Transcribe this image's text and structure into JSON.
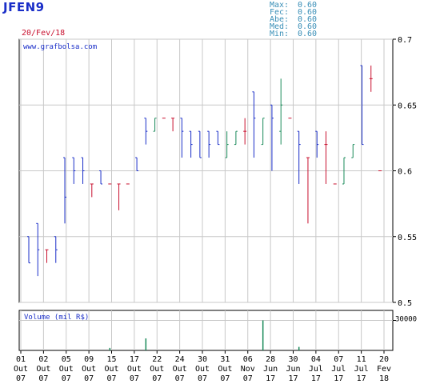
{
  "header": {
    "ticker": "JFEN9",
    "date": "20/Fev/18",
    "stats": [
      {
        "label": "Max:",
        "value": "0.60"
      },
      {
        "label": "Fec:",
        "value": "0.60"
      },
      {
        "label": "Abe:",
        "value": "0.60"
      },
      {
        "label": "Med:",
        "value": "0.60"
      },
      {
        "label": "Min:",
        "value": "0.60"
      }
    ]
  },
  "colors": {
    "up": "#1a8a5a",
    "down": "#1a2ec8",
    "flat": "#c8102e",
    "grid": "#c8c8c8",
    "volume": "#1a8a5a"
  },
  "chart_data": [
    {
      "type": "bar",
      "subtype": "ohlc",
      "watermark": "www.grafbolsa.com",
      "ylim": [
        0.5,
        0.7
      ],
      "yticks": [
        "0.7",
        "0.65",
        "0.6",
        "0.55",
        "0.5"
      ],
      "ytick_values": [
        0.7,
        0.65,
        0.6,
        0.55,
        0.5
      ],
      "grid": true,
      "xticks": [
        {
          "day": "01",
          "period": "Out",
          "year": "07"
        },
        {
          "day": "02",
          "period": "Out",
          "year": "07"
        },
        {
          "day": "05",
          "period": "Out",
          "year": "07"
        },
        {
          "day": "09",
          "period": "Out",
          "year": "07"
        },
        {
          "day": "15",
          "period": "Out",
          "year": "07"
        },
        {
          "day": "17",
          "period": "Out",
          "year": "07"
        },
        {
          "day": "22",
          "period": "Out",
          "year": "07"
        },
        {
          "day": "24",
          "period": "Out",
          "year": "07"
        },
        {
          "day": "30",
          "period": "Out",
          "year": "07"
        },
        {
          "day": "31",
          "period": "Out",
          "year": "07"
        },
        {
          "day": "06",
          "period": "Nov",
          "year": "07"
        },
        {
          "day": "28",
          "period": "Jun",
          "year": "17"
        },
        {
          "day": "30",
          "period": "Jun",
          "year": "17"
        },
        {
          "day": "04",
          "period": "Jul",
          "year": "17"
        },
        {
          "day": "07",
          "period": "Jul",
          "year": "17"
        },
        {
          "day": "11",
          "period": "Jul",
          "year": "17"
        },
        {
          "day": "20",
          "period": "Fev",
          "year": "18"
        }
      ],
      "bars": [
        {
          "i": 0,
          "open": 0.55,
          "high": 0.55,
          "low": 0.53,
          "close": 0.53
        },
        {
          "i": 1,
          "open": 0.56,
          "high": 0.56,
          "low": 0.52,
          "close": 0.54
        },
        {
          "i": 2,
          "open": 0.54,
          "high": 0.54,
          "low": 0.53,
          "close": 0.54
        },
        {
          "i": 3,
          "open": 0.55,
          "high": 0.55,
          "low": 0.53,
          "close": 0.54
        },
        {
          "i": 4,
          "open": 0.61,
          "high": 0.61,
          "low": 0.56,
          "close": 0.58
        },
        {
          "i": 5,
          "open": 0.61,
          "high": 0.61,
          "low": 0.59,
          "close": 0.6
        },
        {
          "i": 6,
          "open": 0.61,
          "high": 0.61,
          "low": 0.59,
          "close": 0.6
        },
        {
          "i": 7,
          "open": 0.59,
          "high": 0.59,
          "low": 0.58,
          "close": 0.59
        },
        {
          "i": 8,
          "open": 0.6,
          "high": 0.6,
          "low": 0.59,
          "close": 0.59
        },
        {
          "i": 9,
          "open": 0.59,
          "high": 0.59,
          "low": 0.59,
          "close": 0.59
        },
        {
          "i": 10,
          "open": 0.59,
          "high": 0.59,
          "low": 0.57,
          "close": 0.59
        },
        {
          "i": 11,
          "open": 0.59,
          "high": 0.59,
          "low": 0.59,
          "close": 0.59
        },
        {
          "i": 12,
          "open": 0.61,
          "high": 0.61,
          "low": 0.6,
          "close": 0.6
        },
        {
          "i": 13,
          "open": 0.64,
          "high": 0.64,
          "low": 0.62,
          "close": 0.63
        },
        {
          "i": 14,
          "open": 0.63,
          "high": 0.64,
          "low": 0.63,
          "close": 0.64
        },
        {
          "i": 15,
          "open": 0.64,
          "high": 0.64,
          "low": 0.64,
          "close": 0.64
        },
        {
          "i": 16,
          "open": 0.64,
          "high": 0.64,
          "low": 0.63,
          "close": 0.64
        },
        {
          "i": 17,
          "open": 0.64,
          "high": 0.64,
          "low": 0.61,
          "close": 0.63
        },
        {
          "i": 18,
          "open": 0.63,
          "high": 0.63,
          "low": 0.61,
          "close": 0.62
        },
        {
          "i": 19,
          "open": 0.63,
          "high": 0.63,
          "low": 0.61,
          "close": 0.61
        },
        {
          "i": 20,
          "open": 0.63,
          "high": 0.63,
          "low": 0.61,
          "close": 0.62
        },
        {
          "i": 21,
          "open": 0.63,
          "high": 0.63,
          "low": 0.62,
          "close": 0.62
        },
        {
          "i": 22,
          "open": 0.61,
          "high": 0.63,
          "low": 0.61,
          "close": 0.62
        },
        {
          "i": 23,
          "open": 0.62,
          "high": 0.63,
          "low": 0.62,
          "close": 0.63
        },
        {
          "i": 24,
          "open": 0.63,
          "high": 0.64,
          "low": 0.62,
          "close": 0.63
        },
        {
          "i": 25,
          "open": 0.66,
          "high": 0.66,
          "low": 0.61,
          "close": 0.64
        },
        {
          "i": 26,
          "open": 0.62,
          "high": 0.64,
          "low": 0.62,
          "close": 0.64
        },
        {
          "i": 27,
          "open": 0.65,
          "high": 0.65,
          "low": 0.6,
          "close": 0.64
        },
        {
          "i": 28,
          "open": 0.63,
          "high": 0.67,
          "low": 0.62,
          "close": 0.65
        },
        {
          "i": 29,
          "open": 0.64,
          "high": 0.64,
          "low": 0.64,
          "close": 0.64
        },
        {
          "i": 30,
          "open": 0.63,
          "high": 0.63,
          "low": 0.59,
          "close": 0.62
        },
        {
          "i": 31,
          "open": 0.61,
          "high": 0.61,
          "low": 0.56,
          "close": 0.61
        },
        {
          "i": 32,
          "open": 0.63,
          "high": 0.63,
          "low": 0.61,
          "close": 0.62
        },
        {
          "i": 33,
          "open": 0.62,
          "high": 0.63,
          "low": 0.59,
          "close": 0.62
        },
        {
          "i": 34,
          "open": 0.59,
          "high": 0.59,
          "low": 0.59,
          "close": 0.59
        },
        {
          "i": 35,
          "open": 0.59,
          "high": 0.61,
          "low": 0.59,
          "close": 0.61
        },
        {
          "i": 36,
          "open": 0.61,
          "high": 0.62,
          "low": 0.61,
          "close": 0.62
        },
        {
          "i": 37,
          "open": 0.68,
          "high": 0.68,
          "low": 0.62,
          "close": 0.62
        },
        {
          "i": 38,
          "open": 0.67,
          "high": 0.68,
          "low": 0.66,
          "close": 0.67
        },
        {
          "i": 39,
          "open": 0.6,
          "high": 0.6,
          "low": 0.6,
          "close": 0.6
        }
      ]
    },
    {
      "type": "bar",
      "subtype": "volume",
      "title": "Volume (mil R$)",
      "yticks": [
        "30000"
      ],
      "ytick_values": [
        30000
      ],
      "ylim": [
        0,
        40000
      ],
      "bars": [
        {
          "i": 9,
          "value": 2500
        },
        {
          "i": 13,
          "value": 12000
        },
        {
          "i": 26,
          "value": 30000
        },
        {
          "i": 30,
          "value": 3500
        }
      ]
    }
  ]
}
